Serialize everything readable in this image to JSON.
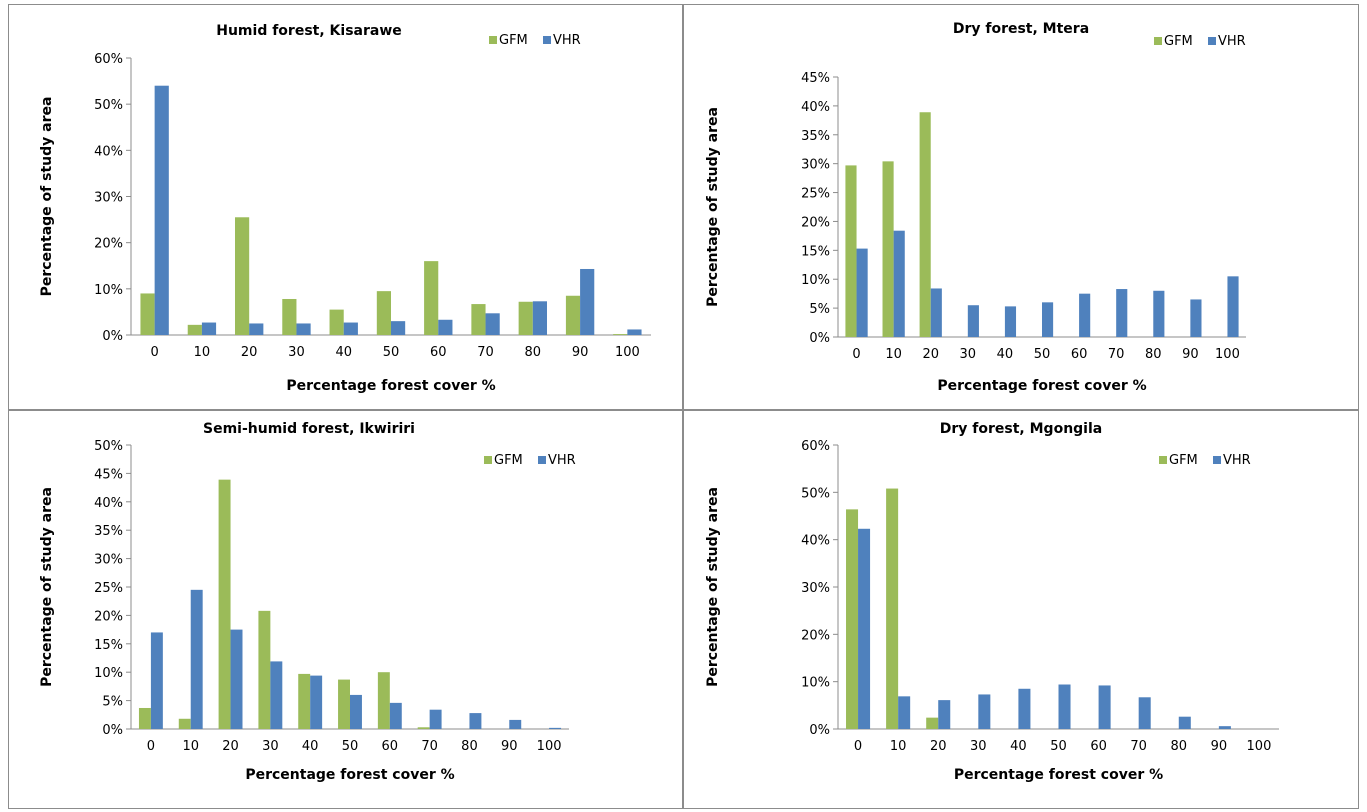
{
  "colors": {
    "GFM": "#9bbb59",
    "VHR": "#4f81bd"
  },
  "chart_data": [
    {
      "type": "bar",
      "title": "Humid forest, Kisarawe",
      "xlabel": "Percentage forest cover %",
      "ylabel": "Percentage of study area",
      "categories": [
        "0",
        "10",
        "20",
        "30",
        "40",
        "50",
        "60",
        "70",
        "80",
        "90",
        "100"
      ],
      "ylim": [
        0,
        60
      ],
      "yticks": [
        "0%",
        "10%",
        "20%",
        "30%",
        "40%",
        "50%",
        "60%"
      ],
      "ystep": 10,
      "legend": "top-right",
      "series": [
        {
          "name": "GFM",
          "values": [
            9.0,
            2.2,
            25.5,
            7.8,
            5.5,
            9.5,
            16.0,
            6.7,
            7.2,
            8.5,
            0.2
          ]
        },
        {
          "name": "VHR",
          "values": [
            54.0,
            2.7,
            2.5,
            2.5,
            2.7,
            3.0,
            3.3,
            4.7,
            7.3,
            14.3,
            1.2
          ]
        }
      ]
    },
    {
      "type": "bar",
      "title": "Dry forest, Mtera",
      "xlabel": "Percentage forest cover %",
      "ylabel": "Percentage of study area",
      "categories": [
        "0",
        "10",
        "20",
        "30",
        "40",
        "50",
        "60",
        "70",
        "80",
        "90",
        "100"
      ],
      "ylim": [
        0,
        45
      ],
      "yticks": [
        "0%",
        "5%",
        "10%",
        "15%",
        "20%",
        "25%",
        "30%",
        "35%",
        "40%",
        "45%"
      ],
      "ystep": 5,
      "legend": "top-right",
      "series": [
        {
          "name": "GFM",
          "values": [
            29.7,
            30.4,
            38.9,
            0,
            0,
            0,
            0,
            0,
            0,
            0,
            0
          ]
        },
        {
          "name": "VHR",
          "values": [
            15.3,
            18.4,
            8.4,
            5.5,
            5.3,
            6.0,
            7.5,
            8.3,
            8.0,
            6.5,
            10.5
          ]
        }
      ]
    },
    {
      "type": "bar",
      "title": "Semi-humid forest, Ikwiriri",
      "xlabel": "Percentage forest cover %",
      "ylabel": "Percentage of study area",
      "categories": [
        "0",
        "10",
        "20",
        "30",
        "40",
        "50",
        "60",
        "70",
        "80",
        "90",
        "100"
      ],
      "ylim": [
        0,
        50
      ],
      "yticks": [
        "0%",
        "5%",
        "10%",
        "15%",
        "20%",
        "25%",
        "30%",
        "35%",
        "40%",
        "45%",
        "50%"
      ],
      "ystep": 5,
      "legend": "top-right",
      "series": [
        {
          "name": "GFM",
          "values": [
            3.7,
            1.8,
            43.9,
            20.8,
            9.7,
            8.7,
            10.0,
            0.3,
            0,
            0,
            0
          ]
        },
        {
          "name": "VHR",
          "values": [
            17.0,
            24.5,
            17.5,
            11.9,
            9.4,
            6.0,
            4.6,
            3.4,
            2.8,
            1.6,
            0.2
          ]
        }
      ]
    },
    {
      "type": "bar",
      "title": "Dry forest, Mgongila",
      "xlabel": "Percentage forest cover %",
      "ylabel": "Percentage of study area",
      "categories": [
        "0",
        "10",
        "20",
        "30",
        "40",
        "50",
        "60",
        "70",
        "80",
        "90",
        "100"
      ],
      "ylim": [
        0,
        60
      ],
      "yticks": [
        "0%",
        "10%",
        "20%",
        "30%",
        "40%",
        "50%",
        "60%"
      ],
      "ystep": 10,
      "legend": "top-right",
      "series": [
        {
          "name": "GFM",
          "values": [
            46.4,
            50.8,
            2.4,
            0,
            0,
            0,
            0,
            0,
            0,
            0,
            0
          ]
        },
        {
          "name": "VHR",
          "values": [
            42.3,
            6.9,
            6.1,
            7.3,
            8.5,
            9.4,
            9.2,
            6.7,
            2.6,
            0.6,
            0
          ]
        }
      ]
    }
  ]
}
